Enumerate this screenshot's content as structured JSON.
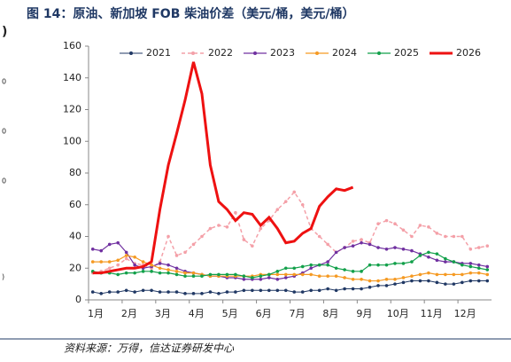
{
  "chart_data": {
    "type": "line",
    "title": "图 14：原油、新加坡 FOB 柴油价差（美元/桶，美元/桶）",
    "source": "资料来源：万得，信达证券研发中心",
    "edge_fragments": [
      ")",
      "0",
      "0",
      "0",
      ")"
    ],
    "categories": [
      "1月",
      null,
      null,
      null,
      "2月",
      null,
      null,
      null,
      "3月",
      null,
      null,
      null,
      "4月",
      null,
      null,
      null,
      "5月",
      null,
      null,
      null,
      "6月",
      null,
      null,
      null,
      "7月",
      null,
      null,
      null,
      "8月",
      null,
      null,
      null,
      "9月",
      null,
      null,
      null,
      "10月",
      null,
      null,
      null,
      "11月",
      null,
      null,
      null,
      "12月",
      null,
      null,
      null
    ],
    "ylim": [
      0,
      160
    ],
    "yticks": [
      0,
      20,
      40,
      60,
      80,
      100,
      120,
      140,
      160
    ],
    "grid": false,
    "legend": "top",
    "series": [
      {
        "name": "2021",
        "color": "#203864",
        "marker": true,
        "dash": false,
        "linewidth": 1,
        "values": [
          5,
          4,
          5,
          5,
          6,
          5,
          6,
          6,
          5,
          5,
          5,
          4,
          4,
          4,
          5,
          4,
          5,
          5,
          6,
          6,
          6,
          6,
          6,
          6,
          5,
          5,
          6,
          6,
          7,
          6,
          7,
          7,
          7,
          8,
          9,
          9,
          10,
          11,
          12,
          12,
          12,
          11,
          10,
          10,
          11,
          12,
          12,
          12
        ]
      },
      {
        "name": "2022",
        "color": "#f4a0a8",
        "marker": true,
        "dash": true,
        "linewidth": 1.5,
        "values": [
          17,
          18,
          20,
          22,
          26,
          23,
          22,
          20,
          24,
          40,
          28,
          30,
          35,
          40,
          45,
          47,
          46,
          55,
          38,
          34,
          45,
          50,
          57,
          62,
          68,
          60,
          45,
          40,
          35,
          30,
          33,
          37,
          38,
          36,
          48,
          50,
          48,
          44,
          40,
          47,
          46,
          42,
          40,
          40,
          40,
          32,
          33,
          34
        ]
      },
      {
        "name": "2023",
        "color": "#7030a0",
        "marker": true,
        "dash": false,
        "linewidth": 1.2,
        "values": [
          32,
          31,
          35,
          36,
          30,
          22,
          20,
          21,
          23,
          22,
          20,
          18,
          17,
          16,
          15,
          15,
          14,
          14,
          13,
          13,
          13,
          14,
          13,
          14,
          15,
          17,
          20,
          22,
          24,
          30,
          33,
          34,
          36,
          35,
          33,
          32,
          33,
          32,
          31,
          29,
          27,
          25,
          24,
          24,
          23,
          23,
          22,
          21
        ]
      },
      {
        "name": "2024",
        "color": "#f59a23",
        "marker": true,
        "dash": false,
        "linewidth": 1.2,
        "values": [
          24,
          24,
          24,
          25,
          28,
          27,
          24,
          22,
          20,
          19,
          18,
          17,
          17,
          16,
          15,
          15,
          15,
          15,
          15,
          15,
          16,
          16,
          16,
          16,
          16,
          16,
          16,
          15,
          15,
          15,
          14,
          13,
          13,
          12,
          12,
          13,
          13,
          14,
          15,
          16,
          17,
          16,
          16,
          16,
          16,
          17,
          17,
          16
        ]
      },
      {
        "name": "2025",
        "color": "#12a04a",
        "marker": true,
        "dash": false,
        "linewidth": 1.2,
        "values": [
          18,
          17,
          17,
          16,
          17,
          17,
          18,
          18,
          17,
          17,
          16,
          15,
          15,
          15,
          16,
          16,
          16,
          16,
          15,
          14,
          15,
          16,
          18,
          20,
          20,
          21,
          22,
          22,
          22,
          20,
          19,
          18,
          18,
          22,
          22,
          22,
          23,
          23,
          24,
          28,
          30,
          29,
          26,
          24,
          22,
          21,
          20,
          19
        ]
      },
      {
        "name": "2026",
        "color": "#ee1111",
        "marker": false,
        "dash": false,
        "linewidth": 3,
        "values": [
          17,
          17,
          18,
          19,
          20,
          20,
          21,
          24,
          57,
          85,
          105,
          126,
          150,
          130,
          85,
          62,
          57,
          50,
          55,
          54,
          47,
          52,
          45,
          36,
          37,
          42,
          45,
          59,
          65,
          70,
          69,
          71,
          null,
          null,
          null,
          null,
          null,
          null,
          null,
          null,
          null,
          null,
          null,
          null,
          null,
          null,
          null,
          null
        ]
      }
    ]
  }
}
